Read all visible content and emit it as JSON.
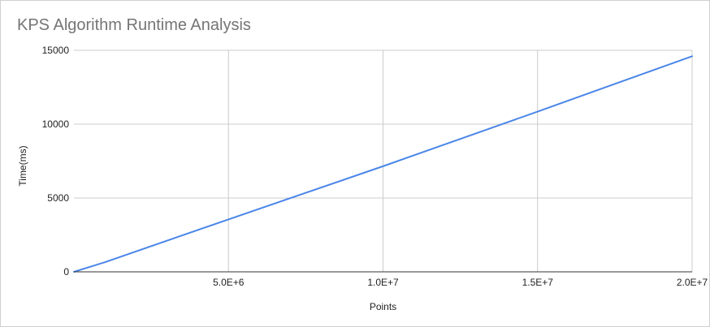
{
  "chart_data": {
    "type": "line",
    "title": "KPS Algorithm Runtime Analysis",
    "xlabel": "Points",
    "ylabel": "Time(ms)",
    "xlim": [
      0,
      20000000
    ],
    "ylim": [
      0,
      15000
    ],
    "x_ticks": [
      {
        "value": 5000000,
        "label": "5.0E+6"
      },
      {
        "value": 10000000,
        "label": "1.0E+7"
      },
      {
        "value": 15000000,
        "label": "1.5E+7"
      },
      {
        "value": 20000000,
        "label": "2.0E+7"
      }
    ],
    "y_ticks": [
      {
        "value": 0,
        "label": "0"
      },
      {
        "value": 5000,
        "label": "5000"
      },
      {
        "value": 10000,
        "label": "10000"
      },
      {
        "value": 15000,
        "label": "15000"
      }
    ],
    "grid": true,
    "legend": "none",
    "series": [
      {
        "color": "#4a86e8",
        "x": [
          0,
          1000000,
          5000000,
          10000000,
          15000000,
          20000000
        ],
        "y": [
          0,
          650,
          3550,
          7150,
          10850,
          14600
        ]
      }
    ]
  }
}
